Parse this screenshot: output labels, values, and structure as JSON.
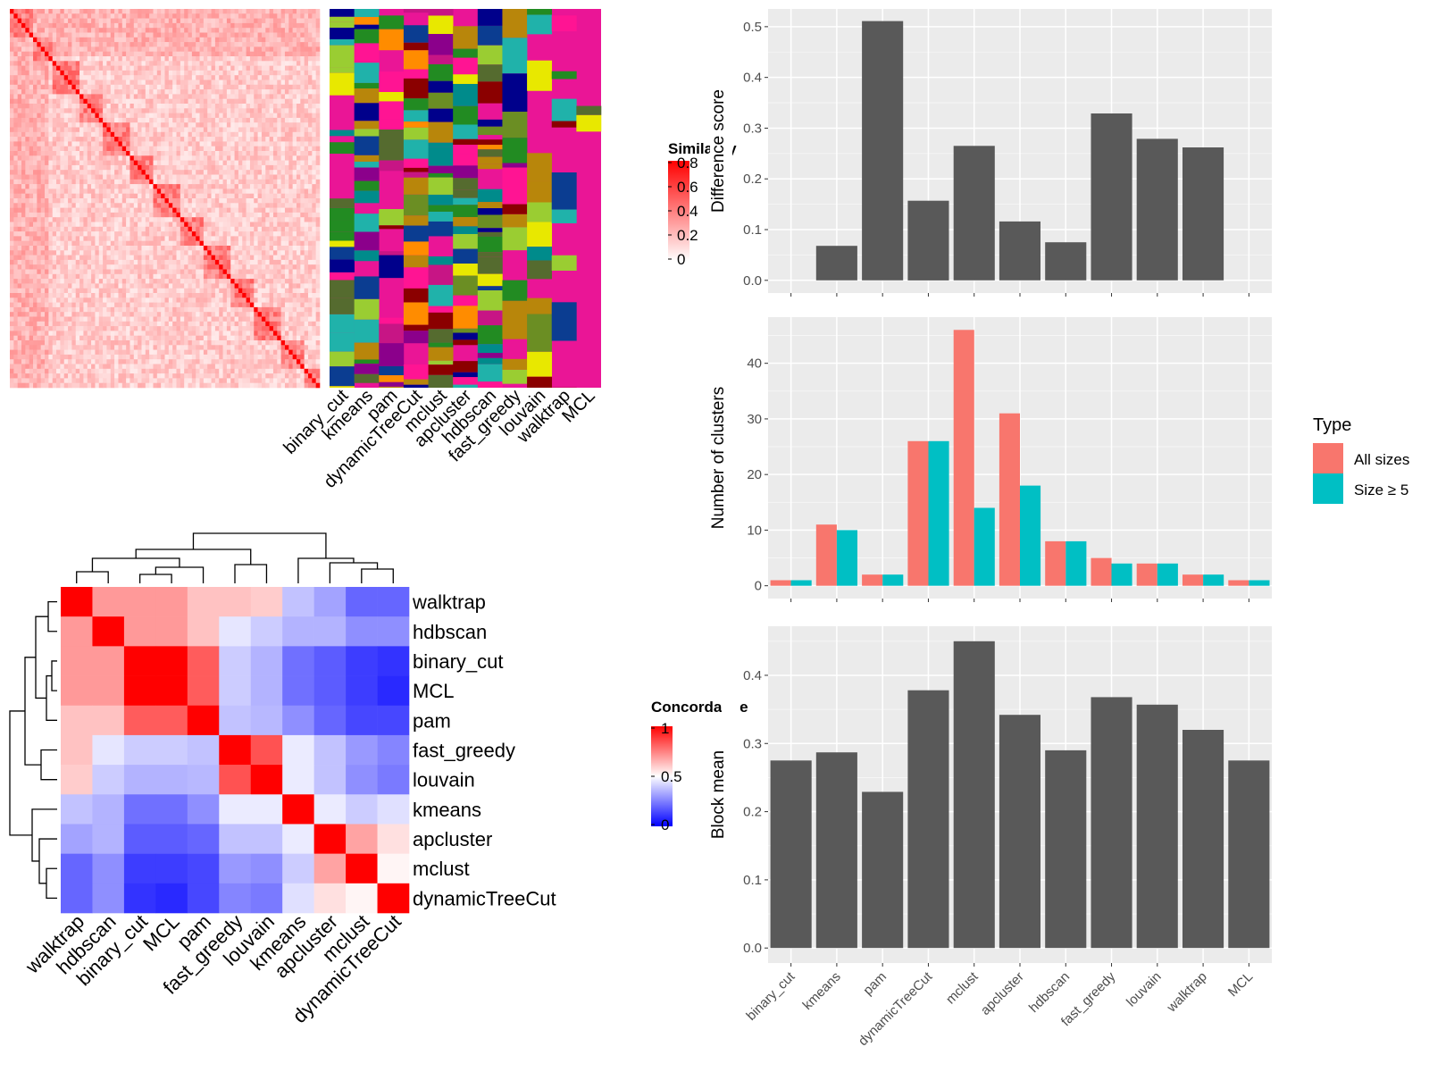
{
  "similarity_heatmap": {
    "legend_title": "Similarity",
    "legend_ticks": [
      "0.8",
      "0.6",
      "0.4",
      "0.2",
      "0"
    ],
    "colors": {
      "low": "#ffffff",
      "high": "#ff0000"
    }
  },
  "class_annotation": {
    "methods": [
      "binary_cut",
      "kmeans",
      "pam",
      "dynamicTreeCut",
      "mclust",
      "apcluster",
      "hdbscan",
      "fast_greedy",
      "louvain",
      "walktrap",
      "MCL"
    ],
    "background": "#ea1596",
    "palette": [
      "#008b8b",
      "#228b22",
      "#c71585",
      "#b8860b",
      "#00008b",
      "#556b2f",
      "#8b0000",
      "#0b3d91",
      "#6b8e23",
      "#e8e800",
      "#ff8c00",
      "#8b008b",
      "#20b2aa",
      "#9acd32",
      "#ff1493"
    ]
  },
  "concordance": {
    "legend_title": "Concordance",
    "legend_ticks": [
      "1",
      "0.5",
      "0"
    ],
    "colors": {
      "low": "#0000ff",
      "mid": "#ffffff",
      "high": "#ff0000"
    },
    "methods": [
      "walktrap",
      "hdbscan",
      "binary_cut",
      "MCL",
      "pam",
      "fast_greedy",
      "louvain",
      "kmeans",
      "apcluster",
      "mclust",
      "dynamicTreeCut"
    ],
    "matrix": [
      [
        1.0,
        0.7,
        0.7,
        0.7,
        0.62,
        0.62,
        0.6,
        0.38,
        0.32,
        0.2,
        0.2
      ],
      [
        0.7,
        1.0,
        0.7,
        0.7,
        0.62,
        0.45,
        0.4,
        0.35,
        0.35,
        0.28,
        0.28
      ],
      [
        0.7,
        0.7,
        1.0,
        1.0,
        0.82,
        0.4,
        0.35,
        0.22,
        0.18,
        0.12,
        0.1
      ],
      [
        0.7,
        0.7,
        1.0,
        1.0,
        0.82,
        0.4,
        0.35,
        0.22,
        0.18,
        0.12,
        0.08
      ],
      [
        0.62,
        0.62,
        0.82,
        0.82,
        1.0,
        0.38,
        0.36,
        0.28,
        0.2,
        0.14,
        0.14
      ],
      [
        0.62,
        0.45,
        0.4,
        0.4,
        0.38,
        1.0,
        0.84,
        0.46,
        0.38,
        0.3,
        0.26
      ],
      [
        0.6,
        0.4,
        0.35,
        0.35,
        0.36,
        0.84,
        1.0,
        0.46,
        0.38,
        0.28,
        0.24
      ],
      [
        0.38,
        0.35,
        0.22,
        0.22,
        0.28,
        0.46,
        0.46,
        1.0,
        0.46,
        0.4,
        0.44
      ],
      [
        0.32,
        0.35,
        0.18,
        0.18,
        0.2,
        0.38,
        0.38,
        0.46,
        1.0,
        0.68,
        0.56
      ],
      [
        0.2,
        0.28,
        0.12,
        0.12,
        0.14,
        0.3,
        0.28,
        0.4,
        0.68,
        1.0,
        0.52
      ],
      [
        0.2,
        0.28,
        0.1,
        0.08,
        0.14,
        0.26,
        0.24,
        0.44,
        0.56,
        0.52,
        1.0
      ]
    ]
  },
  "chart_data": [
    {
      "type": "bar",
      "categories": [
        "binary_cut",
        "kmeans",
        "pam",
        "dynamicTreeCut",
        "mclust",
        "apcluster",
        "hdbscan",
        "fast_greedy",
        "louvain",
        "walktrap",
        "MCL"
      ],
      "values": [
        0.0,
        0.068,
        0.511,
        0.157,
        0.265,
        0.116,
        0.075,
        0.329,
        0.279,
        0.262,
        0.0
      ],
      "ylabel": "Difference score",
      "ylim": [
        -0.025,
        0.535
      ],
      "yticks": [
        "0.0",
        "0.1",
        "0.2",
        "0.3",
        "0.4",
        "0.5"
      ],
      "bar_color": "#595959",
      "grid": true
    },
    {
      "type": "bar",
      "categories": [
        "binary_cut",
        "kmeans",
        "pam",
        "dynamicTreeCut",
        "mclust",
        "apcluster",
        "hdbscan",
        "fast_greedy",
        "louvain",
        "walktrap",
        "MCL"
      ],
      "series": [
        {
          "name": "All sizes",
          "color": "#f8766d",
          "values": [
            1,
            11,
            2,
            26,
            46,
            31,
            8,
            5,
            4,
            2,
            1
          ]
        },
        {
          "name": "Size ≥ 5",
          "color": "#00bfc4",
          "values": [
            1,
            10,
            2,
            26,
            14,
            18,
            8,
            4,
            4,
            2,
            1
          ]
        }
      ],
      "ylabel": "Number of clusters",
      "ylim": [
        -2.3,
        48.3
      ],
      "yticks": [
        "0",
        "10",
        "20",
        "30",
        "40"
      ],
      "legend_title": "Type",
      "legend_position": "right",
      "grid": true
    },
    {
      "type": "bar",
      "categories": [
        "binary_cut",
        "kmeans",
        "pam",
        "dynamicTreeCut",
        "mclust",
        "apcluster",
        "hdbscan",
        "fast_greedy",
        "louvain",
        "walktrap",
        "MCL"
      ],
      "values": [
        0.275,
        0.287,
        0.229,
        0.378,
        0.45,
        0.342,
        0.29,
        0.368,
        0.357,
        0.32,
        0.275
      ],
      "ylabel": "Block mean",
      "ylim": [
        -0.022,
        0.472
      ],
      "yticks": [
        "0.0",
        "0.1",
        "0.2",
        "0.3",
        "0.4"
      ],
      "bar_color": "#595959",
      "grid": true
    }
  ]
}
